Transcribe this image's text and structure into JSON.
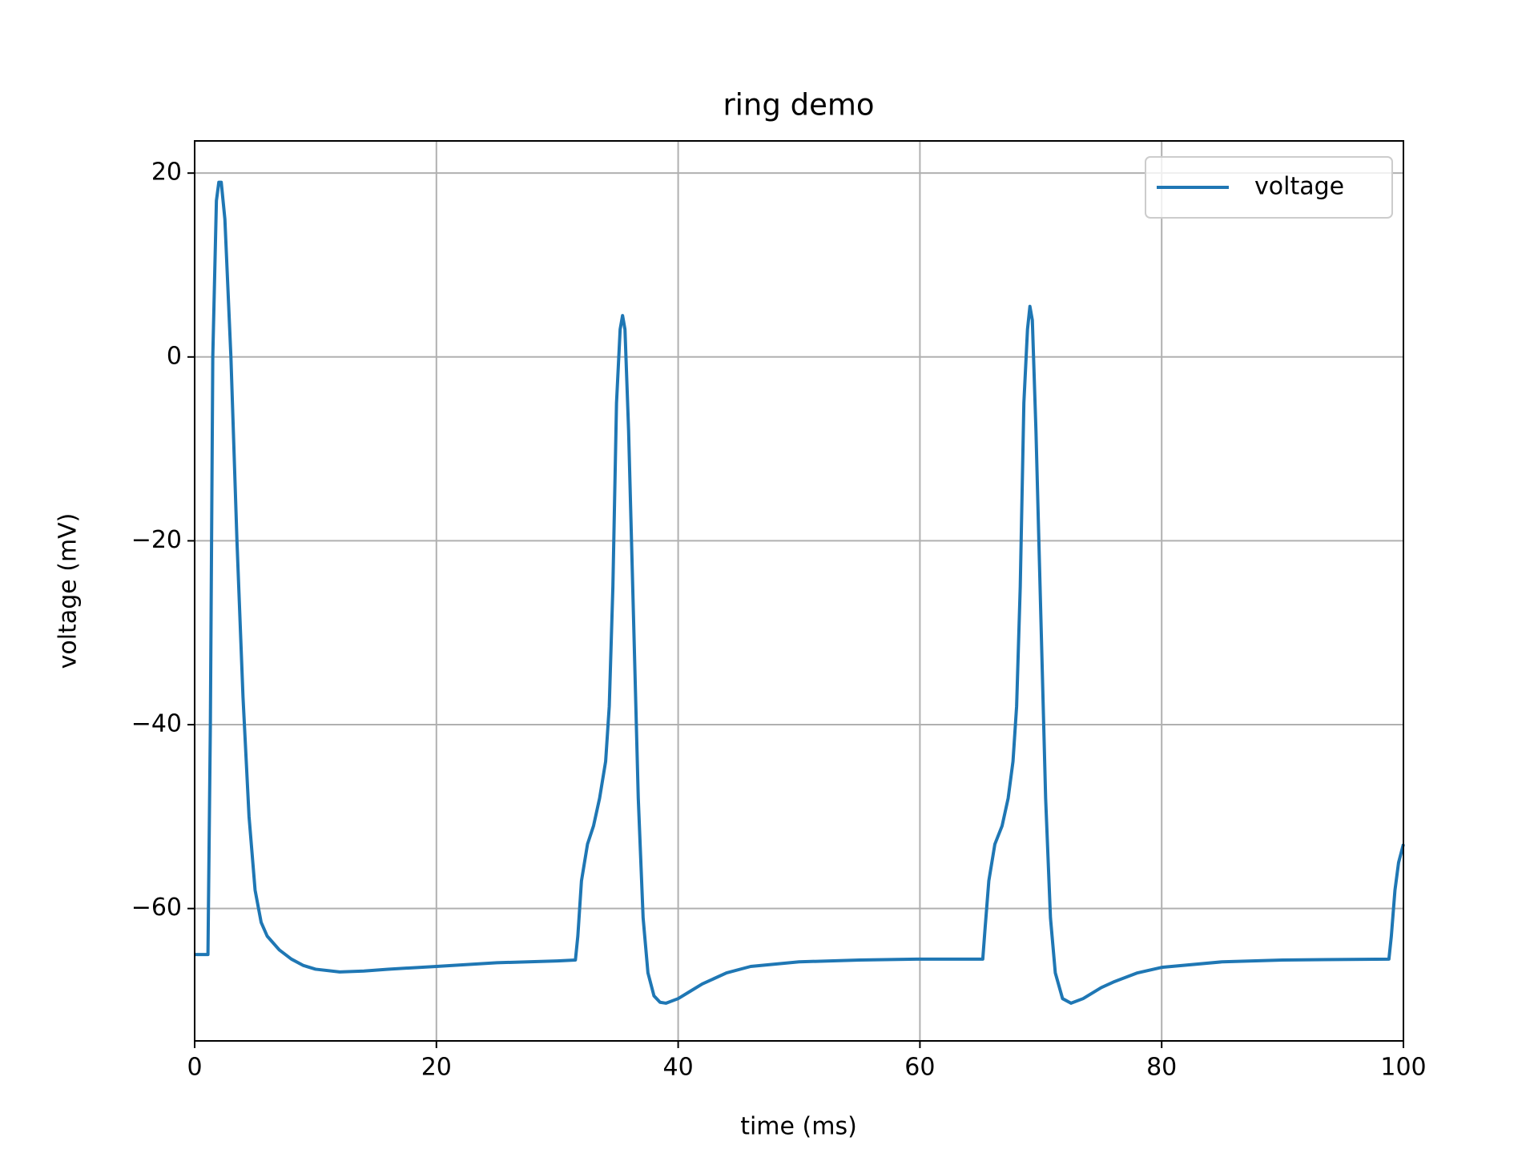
{
  "chart_data": {
    "type": "line",
    "title": "ring demo",
    "x_label": "time (ms)",
    "y_label": "voltage (mV)",
    "x": [
      0,
      1,
      1.1,
      1.3,
      1.5,
      1.8,
      2.0,
      2.2,
      2.5,
      3,
      3.5,
      4,
      4.5,
      5,
      5.5,
      6,
      7,
      8,
      9,
      10,
      12,
      14,
      16,
      20,
      25,
      30,
      31.5,
      31.7,
      32,
      32.5,
      33,
      33.5,
      34,
      34.3,
      34.6,
      34.9,
      35.2,
      35.4,
      35.6,
      35.9,
      36.3,
      36.7,
      37.1,
      37.5,
      38,
      38.5,
      39,
      40,
      41,
      42,
      44,
      46,
      50,
      55,
      60,
      65.2,
      65.4,
      65.7,
      66.2,
      66.8,
      67.3,
      67.7,
      68,
      68.3,
      68.6,
      68.9,
      69.1,
      69.3,
      69.6,
      70,
      70.4,
      70.8,
      71.2,
      71.8,
      72.5,
      73.5,
      75,
      76,
      78,
      80,
      85,
      90,
      98.8,
      99,
      99.3,
      99.6,
      100
    ],
    "series": [
      {
        "name": "voltage",
        "color": "#1f77b4",
        "values": [
          -65,
          -65,
          -65,
          -40,
          0,
          17,
          19,
          19,
          15,
          0,
          -20,
          -37,
          -50,
          -58,
          -61.5,
          -63,
          -64.5,
          -65.5,
          -66.2,
          -66.6,
          -66.9,
          -66.8,
          -66.6,
          -66.3,
          -65.9,
          -65.7,
          -65.6,
          -63,
          -57,
          -53,
          -51,
          -48,
          -44,
          -38,
          -25,
          -5,
          3,
          4.5,
          3,
          -8,
          -28,
          -48,
          -61,
          -67,
          -69.5,
          -70.2,
          -70.3,
          -69.8,
          -69,
          -68.2,
          -67,
          -66.3,
          -65.8,
          -65.6,
          -65.5,
          -65.5,
          -62,
          -57,
          -53,
          -51,
          -48,
          -44,
          -38,
          -25,
          -5,
          3,
          5.5,
          4,
          -8,
          -28,
          -48,
          -61,
          -67,
          -69.8,
          -70.3,
          -69.8,
          -68.6,
          -68,
          -67,
          -66.4,
          -65.8,
          -65.6,
          -65.5,
          -63,
          -58,
          -55,
          -53
        ]
      }
    ],
    "xlim": [
      0,
      100
    ],
    "xticks": [
      0,
      20,
      40,
      60,
      80,
      100
    ],
    "ylim": [
      -74.4,
      23.5
    ],
    "yticks": [
      {
        "value": -60,
        "label": "−60"
      },
      {
        "value": -40,
        "label": "−40"
      },
      {
        "value": -20,
        "label": "−20"
      },
      0,
      20
    ],
    "grid": true,
    "legend": "upper right"
  }
}
